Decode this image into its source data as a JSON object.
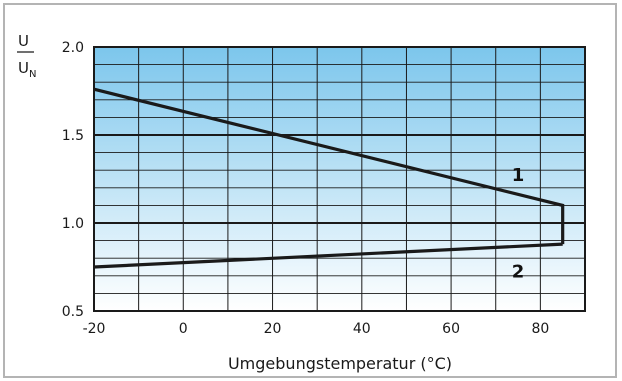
{
  "chart_data": {
    "type": "line",
    "title": "",
    "xlabel": "Umgebungstemperatur (°C)",
    "ylabel_num": "U",
    "ylabel_den": "U",
    "ylabel_den_sub": "N",
    "xlim": [
      -20,
      90
    ],
    "ylim": [
      0.5,
      2.0
    ],
    "xticks": [
      -20,
      0,
      20,
      40,
      60,
      80
    ],
    "xtick_labels": [
      "-20",
      "0",
      "20",
      "40",
      "60",
      "80"
    ],
    "yticks": [
      0.5,
      1.0,
      1.5,
      2.0
    ],
    "ytick_labels": [
      "0.5",
      "1.0",
      "1.5",
      "2.0"
    ],
    "grid": true,
    "background_gradient": [
      "#7cc6ec",
      "#ffffff"
    ],
    "line_color": "#1a1a1a",
    "series": [
      {
        "name": "1",
        "x": [
          -20,
          85,
          85
        ],
        "y": [
          1.76,
          1.1,
          0.88
        ]
      },
      {
        "name": "2",
        "x": [
          -20,
          85
        ],
        "y": [
          0.75,
          0.88
        ]
      }
    ],
    "annotations": [
      {
        "text": "1",
        "x": 75,
        "y": 1.24
      },
      {
        "text": "2",
        "x": 75,
        "y": 0.69
      }
    ]
  }
}
